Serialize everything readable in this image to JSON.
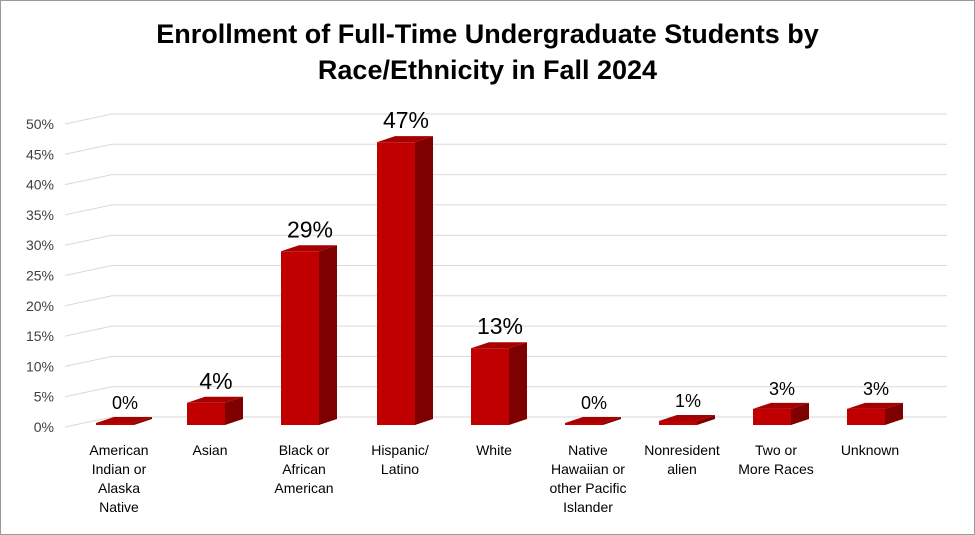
{
  "chart_data": {
    "type": "bar",
    "title_lines": [
      "Enrollment of Full-Time Undergraduate Students by",
      "Race/Ethnicity in Fall 2024"
    ],
    "categories": [
      [
        "American",
        "Indian or",
        "Alaska",
        "Native"
      ],
      [
        "Asian"
      ],
      [
        "Black or",
        "African",
        "American"
      ],
      [
        "Hispanic/",
        "Latino"
      ],
      [
        "White"
      ],
      [
        "Native",
        "Hawaiian or",
        "other Pacific",
        "Islander"
      ],
      [
        "Nonresident",
        "alien"
      ],
      [
        "Two or",
        "More Races"
      ],
      [
        "Unknown"
      ]
    ],
    "values": [
      0,
      4,
      29,
      47,
      13,
      0,
      1,
      3,
      3
    ],
    "data_labels": [
      "0%",
      "4%",
      "29%",
      "47%",
      "13%",
      "0%",
      "1%",
      "3%",
      "3%"
    ],
    "ylim": [
      0,
      50
    ],
    "y_ticks": [
      "0%",
      "5%",
      "10%",
      "15%",
      "20%",
      "25%",
      "30%",
      "35%",
      "40%",
      "45%",
      "50%"
    ],
    "xlabel": "",
    "ylabel": "",
    "grid": true,
    "legend": "none",
    "colors": {
      "bar_front": "#c00000",
      "bar_side": "#7f0000",
      "bar_top": "#a60000",
      "grid": "#d9d9d9"
    }
  }
}
